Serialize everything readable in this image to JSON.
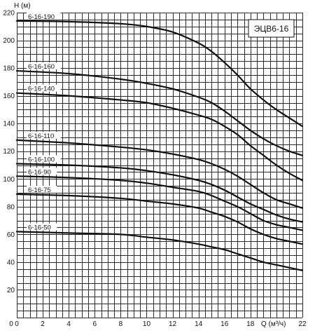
{
  "chart_data": {
    "type": "line",
    "title": "ЭЦВ6-16",
    "xlabel": "Q (м³/ч)",
    "ylabel": "H (м)",
    "xlim": [
      0,
      22
    ],
    "ylim": [
      0,
      220
    ],
    "grid": true,
    "x_ticks": [
      0,
      2,
      4,
      6,
      8,
      10,
      12,
      14,
      16,
      18,
      22
    ],
    "y_ticks": [
      20,
      40,
      60,
      80,
      100,
      120,
      140,
      160,
      180,
      200,
      220
    ],
    "x_tick_labels": [
      "0",
      "2",
      "4",
      "6",
      "8",
      "10",
      "12",
      "14",
      "16",
      "18",
      "22"
    ],
    "y_tick_labels": [
      "20",
      "40",
      "60",
      "80",
      "100",
      "120",
      "140",
      "160",
      "180",
      "200",
      "220"
    ],
    "series": [
      {
        "name": "6-16-190",
        "x": [
          0,
          4,
          8,
          10,
          12,
          14,
          15,
          16,
          17,
          18,
          19,
          20,
          21,
          22
        ],
        "y": [
          214,
          213.5,
          212,
          210,
          206,
          198,
          192,
          184,
          175,
          165,
          157,
          150,
          144,
          138
        ]
      },
      {
        "name": "6-16-160",
        "x": [
          0,
          4,
          8,
          10,
          12,
          14,
          15,
          16,
          17,
          18,
          19,
          20,
          21,
          22
        ],
        "y": [
          178,
          176,
          172,
          169,
          165,
          159,
          155,
          149,
          142,
          135,
          129,
          124,
          120,
          117
        ]
      },
      {
        "name": "6-16-140",
        "x": [
          0,
          4,
          8,
          10,
          12,
          14,
          15,
          16,
          17,
          18,
          19,
          20,
          21,
          22
        ],
        "y": [
          162,
          160,
          157,
          155,
          151,
          146,
          143,
          138,
          132,
          124,
          117,
          110,
          104,
          99
        ]
      },
      {
        "name": "6-16-110",
        "x": [
          0,
          4,
          8,
          10,
          12,
          14,
          15,
          16,
          17,
          18,
          19,
          20,
          21,
          22
        ],
        "y": [
          128,
          126,
          123,
          121,
          118,
          114,
          111,
          107,
          102,
          96,
          90,
          85,
          82,
          79
        ]
      },
      {
        "name": "6-16-100",
        "x": [
          0,
          4,
          8,
          10,
          12,
          14,
          15,
          16,
          17,
          18,
          19,
          20,
          21,
          22
        ],
        "y": [
          111,
          110,
          108,
          106,
          103,
          99,
          96,
          92,
          87,
          82,
          78,
          74,
          71,
          69
        ]
      },
      {
        "name": "6-16-90",
        "x": [
          0,
          4,
          8,
          10,
          12,
          14,
          15,
          16,
          17,
          18,
          19,
          20,
          21,
          22
        ],
        "y": [
          102,
          101,
          99,
          97,
          94,
          91,
          88,
          84,
          80,
          75,
          70,
          67,
          65,
          63
        ]
      },
      {
        "name": "6-16-75",
        "x": [
          0,
          4,
          8,
          10,
          12,
          14,
          15,
          16,
          17,
          18,
          19,
          20,
          21,
          22
        ],
        "y": [
          89,
          88,
          86,
          84,
          82,
          79,
          76,
          73,
          69,
          64,
          60,
          57,
          55,
          53
        ]
      },
      {
        "name": "6-16-50",
        "x": [
          0,
          4,
          8,
          10,
          12,
          14,
          15,
          16,
          17,
          18,
          19,
          20,
          21,
          22
        ],
        "y": [
          62,
          61,
          60,
          58,
          56,
          53,
          51,
          49,
          46,
          43,
          40,
          38,
          36,
          34
        ]
      }
    ]
  }
}
